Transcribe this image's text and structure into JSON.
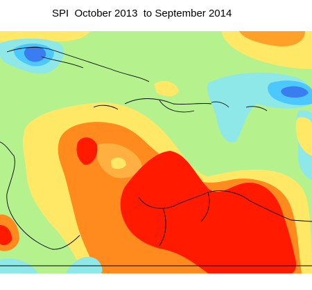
{
  "title": "SPI  October 2013  to September 2014"
}
